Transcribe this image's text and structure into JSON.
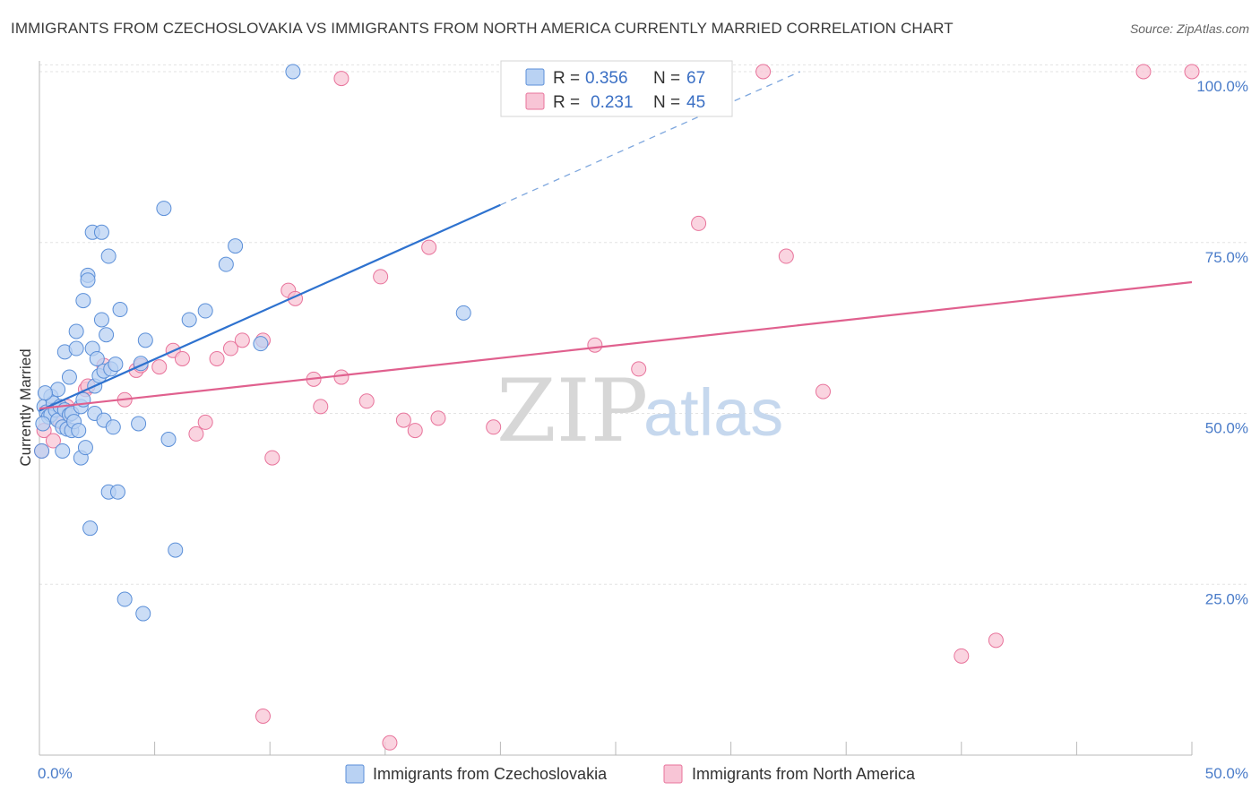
{
  "title": "IMMIGRANTS FROM CZECHOSLOVAKIA VS IMMIGRANTS FROM NORTH AMERICA CURRENTLY MARRIED CORRELATION CHART",
  "source": "Source: ZipAtlas.com",
  "watermark": {
    "zip": "ZIP",
    "atlas": "atlas"
  },
  "legend": {
    "rows": [
      {
        "r_label": "R =",
        "r_value": "0.356",
        "n_label": "N =",
        "n_value": "67"
      },
      {
        "r_label": "R =",
        "r_value": "0.231",
        "n_label": "N =",
        "n_value": "45"
      }
    ]
  },
  "chart_data": {
    "type": "scatter",
    "title": "IMMIGRANTS FROM CZECHOSLOVAKIA VS IMMIGRANTS FROM NORTH AMERICA CURRENTLY MARRIED CORRELATION CHART",
    "xlabel": "",
    "ylabel": "Currently Married",
    "xlim": [
      0,
      50
    ],
    "ylim": [
      0,
      101
    ],
    "x_tick_labels": [
      "0.0%",
      "50.0%"
    ],
    "y_ticks": [
      25,
      50,
      75,
      100
    ],
    "y_tick_labels": [
      "25.0%",
      "50.0%",
      "75.0%",
      "100.0%"
    ],
    "colors": {
      "blue": "#5b8fd8",
      "blue_fill": "#b9d2f3",
      "pink": "#e8739b",
      "pink_fill": "#f8c5d6",
      "blue_line": "#2e72cf",
      "pink_line": "#e0608e"
    },
    "series": [
      {
        "name": "Immigrants from Czechoslovakia",
        "color": "#5b8fd8",
        "R": 0.356,
        "N": 67,
        "trend": {
          "x0": 0,
          "y0": 50.4,
          "x1": 20,
          "y1": 80.5,
          "dash_x1": 33,
          "dash_y1": 100.0
        },
        "points": [
          [
            0.2,
            51.0
          ],
          [
            0.3,
            50.2
          ],
          [
            0.4,
            49.5
          ],
          [
            0.5,
            52.5
          ],
          [
            0.5,
            49.8
          ],
          [
            0.6,
            51.5
          ],
          [
            0.7,
            50.5
          ],
          [
            0.8,
            49.0
          ],
          [
            0.8,
            53.5
          ],
          [
            0.9,
            51.0
          ],
          [
            1.0,
            48.0
          ],
          [
            1.0,
            44.5
          ],
          [
            1.1,
            50.5
          ],
          [
            1.1,
            59.0
          ],
          [
            1.2,
            47.7
          ],
          [
            1.3,
            55.3
          ],
          [
            1.3,
            49.8
          ],
          [
            1.4,
            50.0
          ],
          [
            1.4,
            47.5
          ],
          [
            1.5,
            48.8
          ],
          [
            1.6,
            62.0
          ],
          [
            1.6,
            59.5
          ],
          [
            1.7,
            47.5
          ],
          [
            1.8,
            43.5
          ],
          [
            1.8,
            51.0
          ],
          [
            1.9,
            66.5
          ],
          [
            1.9,
            52.0
          ],
          [
            2.0,
            45.0
          ],
          [
            2.1,
            70.2
          ],
          [
            2.1,
            69.5
          ],
          [
            2.2,
            33.2
          ],
          [
            2.3,
            76.5
          ],
          [
            2.3,
            59.5
          ],
          [
            2.4,
            50.0
          ],
          [
            2.4,
            54.0
          ],
          [
            2.5,
            58.0
          ],
          [
            2.6,
            55.5
          ],
          [
            2.7,
            76.5
          ],
          [
            2.7,
            63.7
          ],
          [
            2.8,
            56.2
          ],
          [
            2.8,
            49.0
          ],
          [
            2.9,
            61.5
          ],
          [
            3.0,
            73.0
          ],
          [
            3.0,
            38.5
          ],
          [
            3.1,
            56.5
          ],
          [
            3.3,
            57.2
          ],
          [
            3.2,
            48.0
          ],
          [
            3.4,
            38.5
          ],
          [
            3.5,
            65.2
          ],
          [
            3.7,
            22.8
          ],
          [
            4.3,
            48.5
          ],
          [
            4.4,
            57.3
          ],
          [
            4.5,
            20.7
          ],
          [
            4.6,
            60.7
          ],
          [
            5.4,
            80.0
          ],
          [
            5.6,
            46.2
          ],
          [
            5.9,
            30.0
          ],
          [
            6.5,
            63.7
          ],
          [
            7.2,
            65.0
          ],
          [
            8.1,
            71.8
          ],
          [
            8.5,
            74.5
          ],
          [
            9.6,
            60.2
          ],
          [
            11.0,
            100.0
          ],
          [
            18.4,
            64.7
          ],
          [
            0.1,
            44.5
          ],
          [
            0.15,
            48.5
          ],
          [
            0.25,
            53.0
          ]
        ]
      },
      {
        "name": "Immigrants from North America",
        "color": "#e8739b",
        "R": 0.231,
        "N": 45,
        "trend": {
          "x0": 0,
          "y0": 50.7,
          "x1": 50,
          "y1": 69.2
        },
        "points": [
          [
            0.1,
            44.5
          ],
          [
            0.2,
            47.5
          ],
          [
            0.5,
            50.5
          ],
          [
            0.6,
            46.0
          ],
          [
            0.9,
            48.8
          ],
          [
            1.2,
            51.0
          ],
          [
            2.0,
            53.5
          ],
          [
            2.1,
            54.0
          ],
          [
            2.8,
            57.0
          ],
          [
            3.7,
            52.0
          ],
          [
            4.2,
            56.3
          ],
          [
            4.4,
            57.0
          ],
          [
            5.2,
            56.8
          ],
          [
            5.8,
            59.2
          ],
          [
            6.2,
            58.0
          ],
          [
            6.8,
            47.0
          ],
          [
            7.2,
            48.7
          ],
          [
            7.7,
            58.0
          ],
          [
            8.3,
            59.5
          ],
          [
            8.8,
            60.7
          ],
          [
            9.7,
            60.7
          ],
          [
            9.7,
            5.7
          ],
          [
            10.1,
            43.5
          ],
          [
            10.8,
            68.0
          ],
          [
            11.1,
            66.8
          ],
          [
            11.9,
            55.0
          ],
          [
            12.2,
            51.0
          ],
          [
            13.1,
            55.3
          ],
          [
            13.1,
            99.0
          ],
          [
            14.2,
            51.8
          ],
          [
            14.8,
            70.0
          ],
          [
            15.2,
            1.8
          ],
          [
            15.8,
            49.0
          ],
          [
            16.3,
            47.5
          ],
          [
            16.9,
            74.3
          ],
          [
            17.3,
            49.3
          ],
          [
            19.7,
            48.0
          ],
          [
            24.1,
            60.0
          ],
          [
            26.0,
            56.5
          ],
          [
            28.6,
            77.8
          ],
          [
            31.4,
            100.0
          ],
          [
            32.4,
            73.0
          ],
          [
            34.0,
            53.2
          ],
          [
            40.0,
            14.5
          ],
          [
            41.5,
            16.8
          ],
          [
            47.9,
            100.0
          ],
          [
            50.0,
            100.0
          ]
        ]
      }
    ]
  },
  "bottom_legend": [
    {
      "label": "Immigrants from Czechoslovakia"
    },
    {
      "label": "Immigrants from North America"
    }
  ]
}
